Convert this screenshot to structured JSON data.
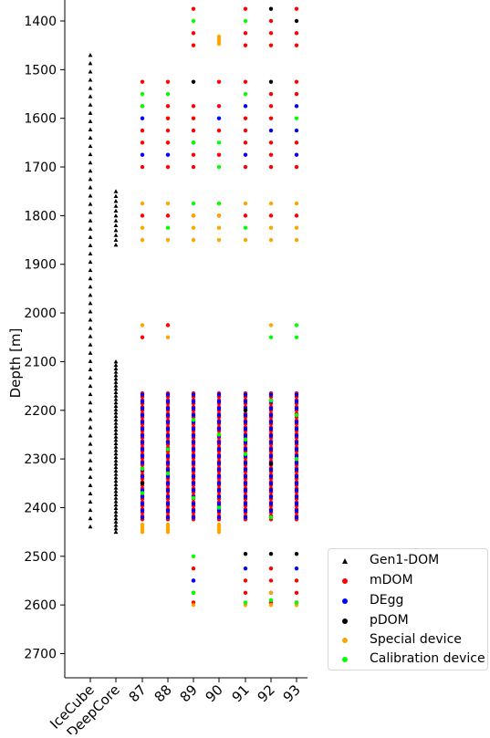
{
  "chart_data": {
    "type": "scatter",
    "title": "",
    "ylabel": "Depth [m]",
    "xlabel": "",
    "ylim": [
      1360,
      2750
    ],
    "y_inverted": true,
    "y_ticks": [
      1400,
      1500,
      1600,
      1700,
      1800,
      1900,
      2000,
      2100,
      2200,
      2300,
      2400,
      2500,
      2600,
      2700
    ],
    "categories": [
      "IceCube",
      "DeepCore",
      "87",
      "88",
      "89",
      "90",
      "91",
      "92",
      "93"
    ],
    "legend_position": "right-bottom",
    "grid": false,
    "colors": {
      "Gen1-DOM": "#000000",
      "mDOM": "#ff0000",
      "DEgg": "#0000ff",
      "pDOM": "#000000",
      "Special device": "#ffa500",
      "Calibration device": "#00ff00"
    },
    "series": [
      {
        "name": "Gen1-DOM",
        "marker": "triangle",
        "groups": [
          {
            "x": "IceCube",
            "from": 1470,
            "to": 2450,
            "step": 17
          },
          {
            "x": "DeepCore",
            "from": 1750,
            "to": 1860,
            "step": 10
          },
          {
            "x": "DeepCore",
            "from": 2100,
            "to": 2450,
            "step": 7
          }
        ]
      },
      {
        "name": "mDOM",
        "marker": "circle",
        "points": [
          [
            "87",
            1525
          ],
          [
            "87",
            1575
          ],
          [
            "87",
            1625
          ],
          [
            "87",
            1650
          ],
          [
            "87",
            1700
          ],
          [
            "87",
            1800
          ],
          [
            "87",
            2050
          ],
          [
            "88",
            1525
          ],
          [
            "88",
            1575
          ],
          [
            "88",
            1600
          ],
          [
            "88",
            1625
          ],
          [
            "88",
            1650
          ],
          [
            "88",
            1700
          ],
          [
            "88",
            1800
          ],
          [
            "88",
            2025
          ],
          [
            "89",
            1375
          ],
          [
            "89",
            1425
          ],
          [
            "89",
            1450
          ],
          [
            "89",
            1575
          ],
          [
            "89",
            1600
          ],
          [
            "89",
            1625
          ],
          [
            "89",
            1675
          ],
          [
            "89",
            1700
          ],
          [
            "89",
            1800
          ],
          [
            "89",
            2525
          ],
          [
            "89",
            2550
          ],
          [
            "89",
            2575
          ],
          [
            "89",
            2595
          ],
          [
            "90",
            1525
          ],
          [
            "90",
            1575
          ],
          [
            "90",
            1625
          ],
          [
            "90",
            1675
          ],
          [
            "90",
            1800
          ],
          [
            "91",
            1375
          ],
          [
            "91",
            1425
          ],
          [
            "91",
            1450
          ],
          [
            "91",
            1525
          ],
          [
            "91",
            1600
          ],
          [
            "91",
            1625
          ],
          [
            "91",
            1650
          ],
          [
            "91",
            1700
          ],
          [
            "91",
            1800
          ],
          [
            "91",
            2550
          ],
          [
            "91",
            2575
          ],
          [
            "92",
            1400
          ],
          [
            "92",
            1425
          ],
          [
            "92",
            1450
          ],
          [
            "92",
            1550
          ],
          [
            "92",
            1575
          ],
          [
            "92",
            1600
          ],
          [
            "92",
            1650
          ],
          [
            "92",
            1675
          ],
          [
            "92",
            1700
          ],
          [
            "92",
            1800
          ],
          [
            "92",
            2525
          ],
          [
            "92",
            2550
          ],
          [
            "92",
            2595
          ],
          [
            "93",
            1375
          ],
          [
            "93",
            1425
          ],
          [
            "93",
            1450
          ],
          [
            "93",
            1525
          ],
          [
            "93",
            1550
          ],
          [
            "93",
            1650
          ],
          [
            "93",
            1700
          ],
          [
            "93",
            1800
          ],
          [
            "93",
            2550
          ],
          [
            "93",
            2575
          ],
          [
            "93",
            2595
          ]
        ],
        "lines": [
          {
            "x": "87",
            "from": 2165,
            "to": 2430,
            "step": 7
          },
          {
            "x": "88",
            "from": 2165,
            "to": 2430,
            "step": 7
          },
          {
            "x": "89",
            "from": 2165,
            "to": 2430,
            "step": 7
          },
          {
            "x": "90",
            "from": 2165,
            "to": 2430,
            "step": 7
          },
          {
            "x": "91",
            "from": 2165,
            "to": 2430,
            "step": 7
          },
          {
            "x": "92",
            "from": 2165,
            "to": 2430,
            "step": 7
          },
          {
            "x": "93",
            "from": 2165,
            "to": 2430,
            "step": 7
          }
        ]
      },
      {
        "name": "DEgg",
        "marker": "circle",
        "points": [
          [
            "87",
            1600
          ],
          [
            "87",
            1675
          ],
          [
            "88",
            1675
          ],
          [
            "89",
            1650
          ],
          [
            "89",
            2550
          ],
          [
            "90",
            1600
          ],
          [
            "91",
            1575
          ],
          [
            "91",
            1675
          ],
          [
            "91",
            2525
          ],
          [
            "92",
            1625
          ],
          [
            "92",
            2575
          ],
          [
            "93",
            1575
          ],
          [
            "93",
            1625
          ],
          [
            "93",
            1675
          ],
          [
            "93",
            2525
          ]
        ],
        "lines": [
          {
            "x": "87",
            "from": 2168,
            "to": 2428,
            "step": 14
          },
          {
            "x": "88",
            "from": 2168,
            "to": 2428,
            "step": 14
          },
          {
            "x": "89",
            "from": 2168,
            "to": 2428,
            "step": 14
          },
          {
            "x": "90",
            "from": 2168,
            "to": 2428,
            "step": 14
          },
          {
            "x": "91",
            "from": 2168,
            "to": 2428,
            "step": 14
          },
          {
            "x": "92",
            "from": 2168,
            "to": 2428,
            "step": 14
          },
          {
            "x": "93",
            "from": 2168,
            "to": 2428,
            "step": 14
          }
        ]
      },
      {
        "name": "pDOM",
        "marker": "circle",
        "points": [
          [
            "89",
            1525
          ],
          [
            "92",
            1375
          ],
          [
            "92",
            1525
          ],
          [
            "93",
            1400
          ],
          [
            "91",
            2495
          ],
          [
            "92",
            2495
          ],
          [
            "93",
            2495
          ],
          [
            "87",
            2350
          ],
          [
            "92",
            2310
          ],
          [
            "91",
            2200
          ]
        ]
      },
      {
        "name": "Special device",
        "marker": "circle",
        "points": [
          [
            "87",
            1775
          ],
          [
            "87",
            1825
          ],
          [
            "87",
            1850
          ],
          [
            "87",
            2025
          ],
          [
            "88",
            1775
          ],
          [
            "88",
            1850
          ],
          [
            "88",
            2050
          ],
          [
            "89",
            1800
          ],
          [
            "89",
            1825
          ],
          [
            "89",
            1850
          ],
          [
            "89",
            2600
          ],
          [
            "90",
            1432
          ],
          [
            "90",
            1437
          ],
          [
            "90",
            1442
          ],
          [
            "90",
            1447
          ],
          [
            "90",
            1800
          ],
          [
            "90",
            1825
          ],
          [
            "90",
            1850
          ],
          [
            "91",
            1775
          ],
          [
            "91",
            1850
          ],
          [
            "91",
            2600
          ],
          [
            "92",
            1775
          ],
          [
            "92",
            1825
          ],
          [
            "92",
            1850
          ],
          [
            "92",
            2025
          ],
          [
            "92",
            2575
          ],
          [
            "92",
            2600
          ],
          [
            "93",
            1775
          ],
          [
            "93",
            1825
          ],
          [
            "93",
            1850
          ],
          [
            "93",
            2600
          ],
          [
            "87",
            2435
          ],
          [
            "87",
            2440
          ],
          [
            "87",
            2445
          ],
          [
            "87",
            2450
          ],
          [
            "88",
            2435
          ],
          [
            "88",
            2440
          ],
          [
            "88",
            2445
          ],
          [
            "88",
            2450
          ],
          [
            "90",
            2435
          ],
          [
            "90",
            2440
          ],
          [
            "90",
            2445
          ],
          [
            "90",
            2450
          ]
        ]
      },
      {
        "name": "Calibration device",
        "marker": "circle",
        "points": [
          [
            "87",
            1550
          ],
          [
            "87",
            1575
          ],
          [
            "88",
            1550
          ],
          [
            "88",
            1825
          ],
          [
            "89",
            1400
          ],
          [
            "89",
            1650
          ],
          [
            "89",
            1775
          ],
          [
            "89",
            2500
          ],
          [
            "89",
            2575
          ],
          [
            "90",
            1650
          ],
          [
            "90",
            1700
          ],
          [
            "90",
            1775
          ],
          [
            "91",
            1400
          ],
          [
            "91",
            1550
          ],
          [
            "91",
            1825
          ],
          [
            "91",
            2595
          ],
          [
            "92",
            2050
          ],
          [
            "92",
            2590
          ],
          [
            "93",
            1600
          ],
          [
            "93",
            2025
          ],
          [
            "93",
            2050
          ],
          [
            "93",
            2595
          ],
          [
            "87",
            2320
          ],
          [
            "87",
            2370
          ],
          [
            "88",
            2280
          ],
          [
            "88",
            2330
          ],
          [
            "89",
            2220
          ],
          [
            "89",
            2380
          ],
          [
            "90",
            2250
          ],
          [
            "90",
            2400
          ],
          [
            "91",
            2260
          ],
          [
            "91",
            2290
          ],
          [
            "92",
            2180
          ],
          [
            "92",
            2420
          ],
          [
            "93",
            2210
          ],
          [
            "93",
            2300
          ]
        ]
      }
    ]
  },
  "legend": {
    "items": [
      {
        "label": "Gen1-DOM",
        "color": "#000000",
        "marker": "triangle"
      },
      {
        "label": "mDOM",
        "color": "#ff0000",
        "marker": "circle"
      },
      {
        "label": "DEgg",
        "color": "#0000ff",
        "marker": "circle"
      },
      {
        "label": "pDOM",
        "color": "#000000",
        "marker": "circle"
      },
      {
        "label": "Special device",
        "color": "#ffa500",
        "marker": "circle"
      },
      {
        "label": "Calibration device",
        "color": "#00ff00",
        "marker": "circle"
      }
    ]
  }
}
